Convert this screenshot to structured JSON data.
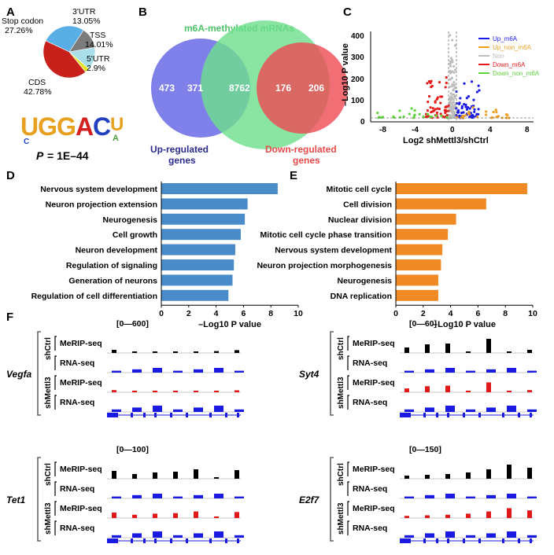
{
  "panels": {
    "A": "A",
    "B": "B",
    "C": "C",
    "D": "D",
    "E": "E",
    "F": "F"
  },
  "panelA": {
    "pie": [
      {
        "label": "Stop codon",
        "value": 27.26,
        "display": "27.26%",
        "color": "#5aaee6"
      },
      {
        "label": "3'UTR",
        "value": 13.05,
        "display": "13.05%",
        "color": "#7b7b7b"
      },
      {
        "label": "TSS",
        "value": 14.01,
        "display": "14.01%",
        "color": "#a9dfea"
      },
      {
        "label": "5'UTR",
        "value": 2.9,
        "display": "2.9%",
        "color": "#e6e32a"
      },
      {
        "label": "CDS",
        "value": 42.78,
        "display": "42.78%",
        "color": "#c8201a"
      }
    ],
    "motif": "UGGACU",
    "pvalue_label": "P",
    "pvalue_text": "= 1E–44"
  },
  "panelB": {
    "title": "m6A-methylated mRNAs",
    "up_only": "473",
    "up_overlap": "371",
    "center": "8762",
    "down_overlap": "176",
    "down_only": "206",
    "up_label_1": "Up-regulated",
    "up_label_2": "genes",
    "down_label_1": "Down-regulated",
    "down_label_2": "genes",
    "colors": {
      "up": "#7f7ff0",
      "mid": "#6dde8a",
      "down": "#f05a5a"
    }
  },
  "panelC": {
    "ylabel": "–Log10 P value",
    "xlabel": "Log2 shMettl3/shCtrl",
    "xticks": [
      "-8",
      "-4",
      "0",
      "4",
      "8"
    ],
    "yticks": [
      "0",
      "100",
      "200",
      "300",
      "400"
    ],
    "legend": [
      {
        "label": "Up_m6A",
        "color": "#1a1ae6"
      },
      {
        "label": "Up_non_m6A",
        "color": "#f0a020"
      },
      {
        "label": "Non",
        "color": "#bdbdbd"
      },
      {
        "label": "Down_m6A",
        "color": "#e61a1a"
      },
      {
        "label": "Down_non_m6A",
        "color": "#5fd43a"
      }
    ]
  },
  "chart_data": [
    {
      "type": "bar",
      "orientation": "horizontal",
      "categories": [
        "Nervous system development",
        "Neuron projection extension",
        "Neurogenesis",
        "Cell growth",
        "Neuron development",
        "Regulation of signaling",
        "Generation of neurons",
        "Regulation of cell differentiation"
      ],
      "values": [
        8.5,
        6.3,
        6.1,
        5.8,
        5.4,
        5.3,
        5.2,
        4.9
      ],
      "xlabel": "–Log10 P value",
      "xticks": [
        "0",
        "2",
        "4",
        "6",
        "8",
        "10"
      ],
      "xlim": [
        0,
        10
      ],
      "color": "#4a8cc9"
    },
    {
      "type": "bar",
      "orientation": "horizontal",
      "categories": [
        "Mitotic cell cycle",
        "Cell division",
        "Nuclear division",
        "Mitotic cell cycle phase transition",
        "Nervous system development",
        "Neuron projection morphogenesis",
        "Neurogenesis",
        "DNA replication"
      ],
      "values": [
        9.6,
        6.6,
        4.4,
        3.8,
        3.4,
        3.3,
        3.1,
        3.1
      ],
      "xlabel": "–Log10 P value",
      "xticks": [
        "0",
        "2",
        "4",
        "6",
        "8",
        "10"
      ],
      "xlim": [
        0,
        10
      ],
      "color": "#f08a24"
    }
  ],
  "panelF": {
    "tracks": [
      {
        "gene": "Vegfa",
        "range": "[0—600]"
      },
      {
        "gene": "Syt4",
        "range": "[0—60]"
      },
      {
        "gene": "Tet1",
        "range": "[0—100]"
      },
      {
        "gene": "E2f7",
        "range": "[0—150]"
      }
    ],
    "merip": "MeRIP-seq",
    "rna": "RNA-seq",
    "shctrl": "shCtrl",
    "shmettl3": "shMettl3"
  }
}
